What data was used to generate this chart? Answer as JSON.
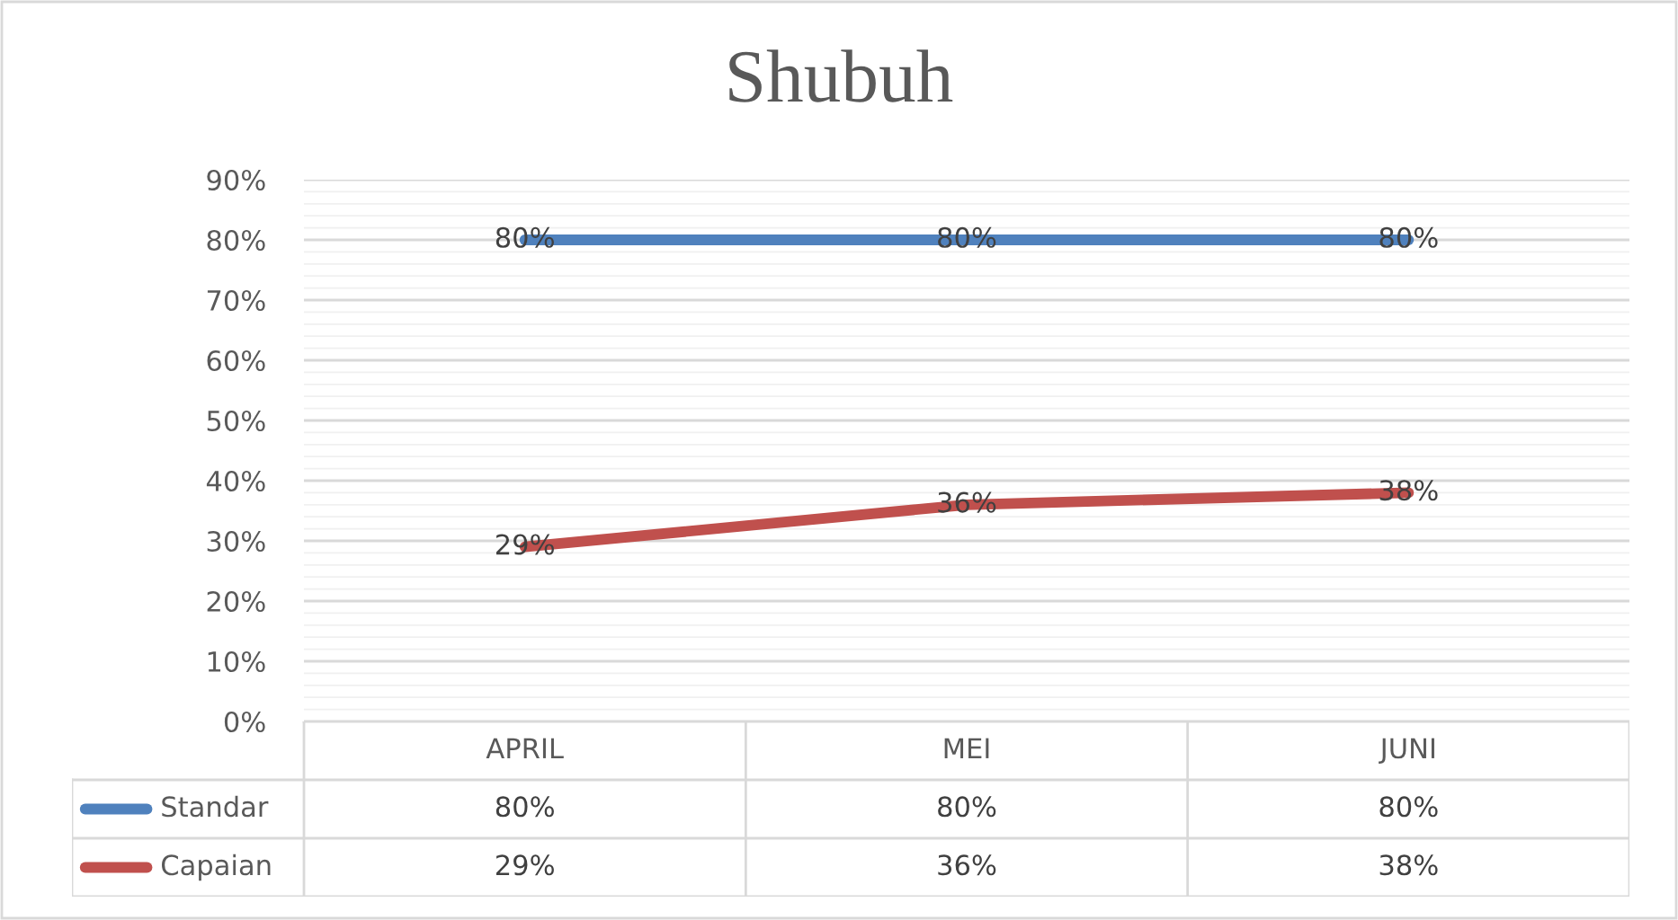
{
  "chart_data": {
    "type": "line",
    "title": "Shubuh",
    "categories": [
      "APRIL",
      "MEI",
      "JUNI"
    ],
    "series": [
      {
        "name": "Standar",
        "color": "#4f81bd",
        "values": [
          80,
          80,
          80
        ],
        "value_labels": [
          "80%",
          "80%",
          "80%"
        ]
      },
      {
        "name": "Capaian",
        "color": "#c0504d",
        "values": [
          29,
          36,
          38
        ],
        "value_labels": [
          "29%",
          "36%",
          "38%"
        ]
      }
    ],
    "ylim": [
      0,
      90
    ],
    "yticks": [
      {
        "value": 0,
        "label": "0%"
      },
      {
        "value": 10,
        "label": "10%"
      },
      {
        "value": 20,
        "label": "20%"
      },
      {
        "value": 30,
        "label": "30%"
      },
      {
        "value": 40,
        "label": "40%"
      },
      {
        "value": 50,
        "label": "50%"
      },
      {
        "value": 60,
        "label": "60%"
      },
      {
        "value": 70,
        "label": "70%"
      },
      {
        "value": 80,
        "label": "80%"
      },
      {
        "value": 90,
        "label": "90%"
      }
    ],
    "grid": "y",
    "legend": "bottom",
    "line_style": "solid"
  }
}
